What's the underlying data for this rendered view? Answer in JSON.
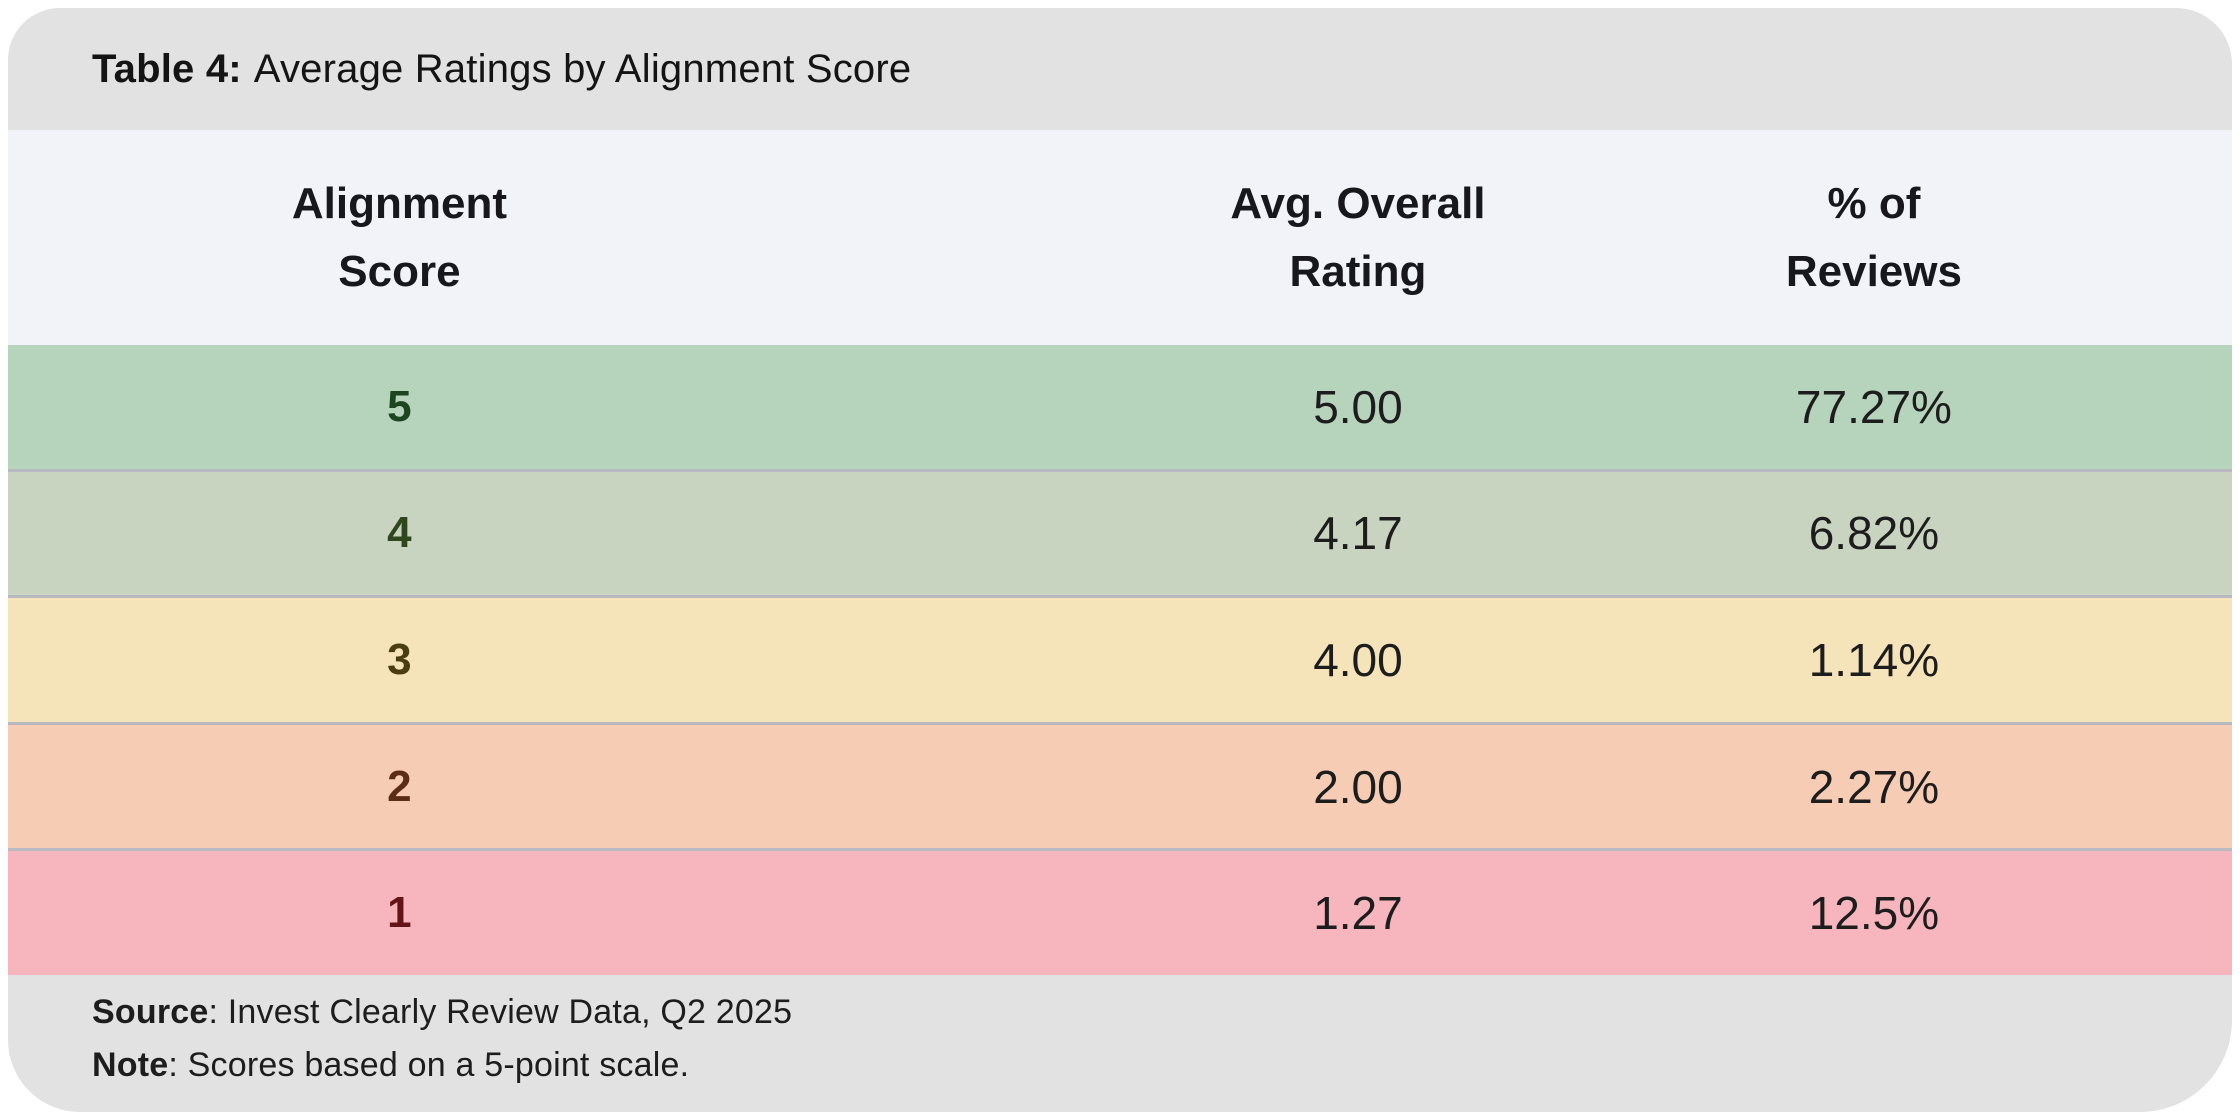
{
  "title": {
    "label": "Table 4:",
    "text": "Average Ratings by Alignment Score"
  },
  "table": {
    "headers": {
      "col1": "Alignment\nScore",
      "col2": "Avg. Overall\nRating",
      "col3": "% of\nReviews"
    },
    "rows": [
      {
        "score": "5",
        "rating": "5.00",
        "pct": "77.27%",
        "bg": "#b6d3bb",
        "score_color": "#1e4522"
      },
      {
        "score": "4",
        "rating": "4.17",
        "pct": "6.82%",
        "bg": "#c9d4c0",
        "score_color": "#2f471c"
      },
      {
        "score": "3",
        "rating": "4.00",
        "pct": "1.14%",
        "bg": "#f5e3ba",
        "score_color": "#4a3d12"
      },
      {
        "score": "2",
        "rating": "2.00",
        "pct": "2.27%",
        "bg": "#f7ccb5",
        "score_color": "#5c2d16"
      },
      {
        "score": "1",
        "rating": "1.27",
        "pct": "12.5%",
        "bg": "#f7b5bd",
        "score_color": "#641318"
      }
    ]
  },
  "footer": {
    "source_label": "Source",
    "source_text": ": Invest Clearly Review Data, Q2 2025",
    "note_label": "Note",
    "note_text": ": Scores based on a 5-point scale."
  },
  "colors": {
    "card_gray": "#e2e2e2",
    "header_bg": "#f2f3f8",
    "separator": "#b9bac1",
    "value_text": "#1d1d1d"
  },
  "chart_data": {
    "type": "table",
    "title": "Table 4: Average Ratings by Alignment Score",
    "columns": [
      "Alignment Score",
      "Avg. Overall Rating",
      "% of Reviews"
    ],
    "rows": [
      {
        "alignment_score": 5,
        "avg_overall_rating": 5.0,
        "pct_of_reviews": 77.27
      },
      {
        "alignment_score": 4,
        "avg_overall_rating": 4.17,
        "pct_of_reviews": 6.82
      },
      {
        "alignment_score": 3,
        "avg_overall_rating": 4.0,
        "pct_of_reviews": 1.14
      },
      {
        "alignment_score": 2,
        "avg_overall_rating": 2.0,
        "pct_of_reviews": 2.27
      },
      {
        "alignment_score": 1,
        "avg_overall_rating": 1.27,
        "pct_of_reviews": 12.5
      }
    ],
    "row_colors": [
      "#b6d3bb",
      "#c9d4c0",
      "#f5e3ba",
      "#f7ccb5",
      "#f7b5bd"
    ],
    "source": "Invest Clearly Review Data, Q2 2025",
    "note": "Scores based on a 5-point scale.",
    "layout": "color-coded rows from green (5) to red (1), values centered per column"
  }
}
